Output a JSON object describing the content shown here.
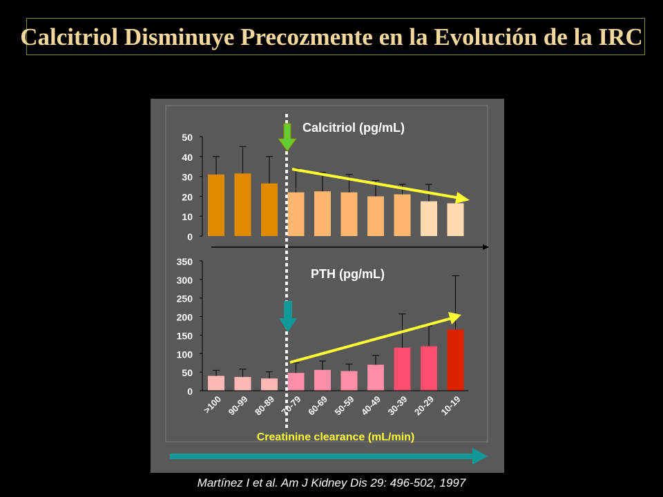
{
  "slide": {
    "title": "Calcitriol Disminuye Precozmente en la Evolución de la IRC",
    "citation": "Martínez I et al. Am J Kidney Dis 29: 496-502, 1997"
  },
  "colors": {
    "background": "#000000",
    "panel": "#595959",
    "title": "#f5d89e",
    "trend_arrow": "#ffff33",
    "marker_arrow_green": "#66cc33",
    "marker_arrow_teal": "#119999",
    "xlabel": "#ffff33"
  },
  "chart_data": [
    {
      "type": "bar",
      "title": "Calcitriol (pg/mL)",
      "categories": [
        ">100",
        "90-99",
        "80-89",
        "70-79",
        "60-69",
        "50-59",
        "40-49",
        "30-39",
        "20-29",
        "10-19"
      ],
      "values": [
        31,
        31.5,
        26.5,
        22,
        22.5,
        22,
        20,
        21,
        17.5,
        16.5
      ],
      "error_upper": [
        40,
        45,
        40,
        34,
        32,
        31,
        28,
        26,
        26,
        null
      ],
      "ylim": [
        0,
        50
      ],
      "yticks": [
        0,
        10,
        20,
        30,
        40,
        50
      ],
      "bar_colors": [
        "#e08a00",
        "#e08a00",
        "#e08a00",
        "#ffb66e",
        "#ffb66e",
        "#ffb66e",
        "#ffb66e",
        "#ffb66e",
        "#ffd9b0",
        "#ffd9b0"
      ],
      "trend": "decreasing"
    },
    {
      "type": "bar",
      "title": "PTH (pg/mL)",
      "categories": [
        ">100",
        "90-99",
        "80-89",
        "70-79",
        "60-69",
        "50-59",
        "40-49",
        "30-39",
        "20-29",
        "10-19"
      ],
      "values": [
        40,
        37,
        33,
        48,
        56,
        53,
        70,
        116,
        120,
        165
      ],
      "error_upper": [
        55,
        58,
        51,
        75,
        80,
        72,
        95,
        207,
        175,
        310
      ],
      "ylim": [
        0,
        350
      ],
      "yticks": [
        0,
        50,
        100,
        150,
        200,
        250,
        300,
        350
      ],
      "xlabel": "Creatinine clearance (mL/min)",
      "bar_colors": [
        "#ffb8b8",
        "#ffb8b8",
        "#ffb8b8",
        "#ff8fa8",
        "#ff8fa8",
        "#ff8fa8",
        "#ff8fa8",
        "#ff4d70",
        "#ff4d70",
        "#dd2200"
      ],
      "trend": "increasing"
    }
  ]
}
